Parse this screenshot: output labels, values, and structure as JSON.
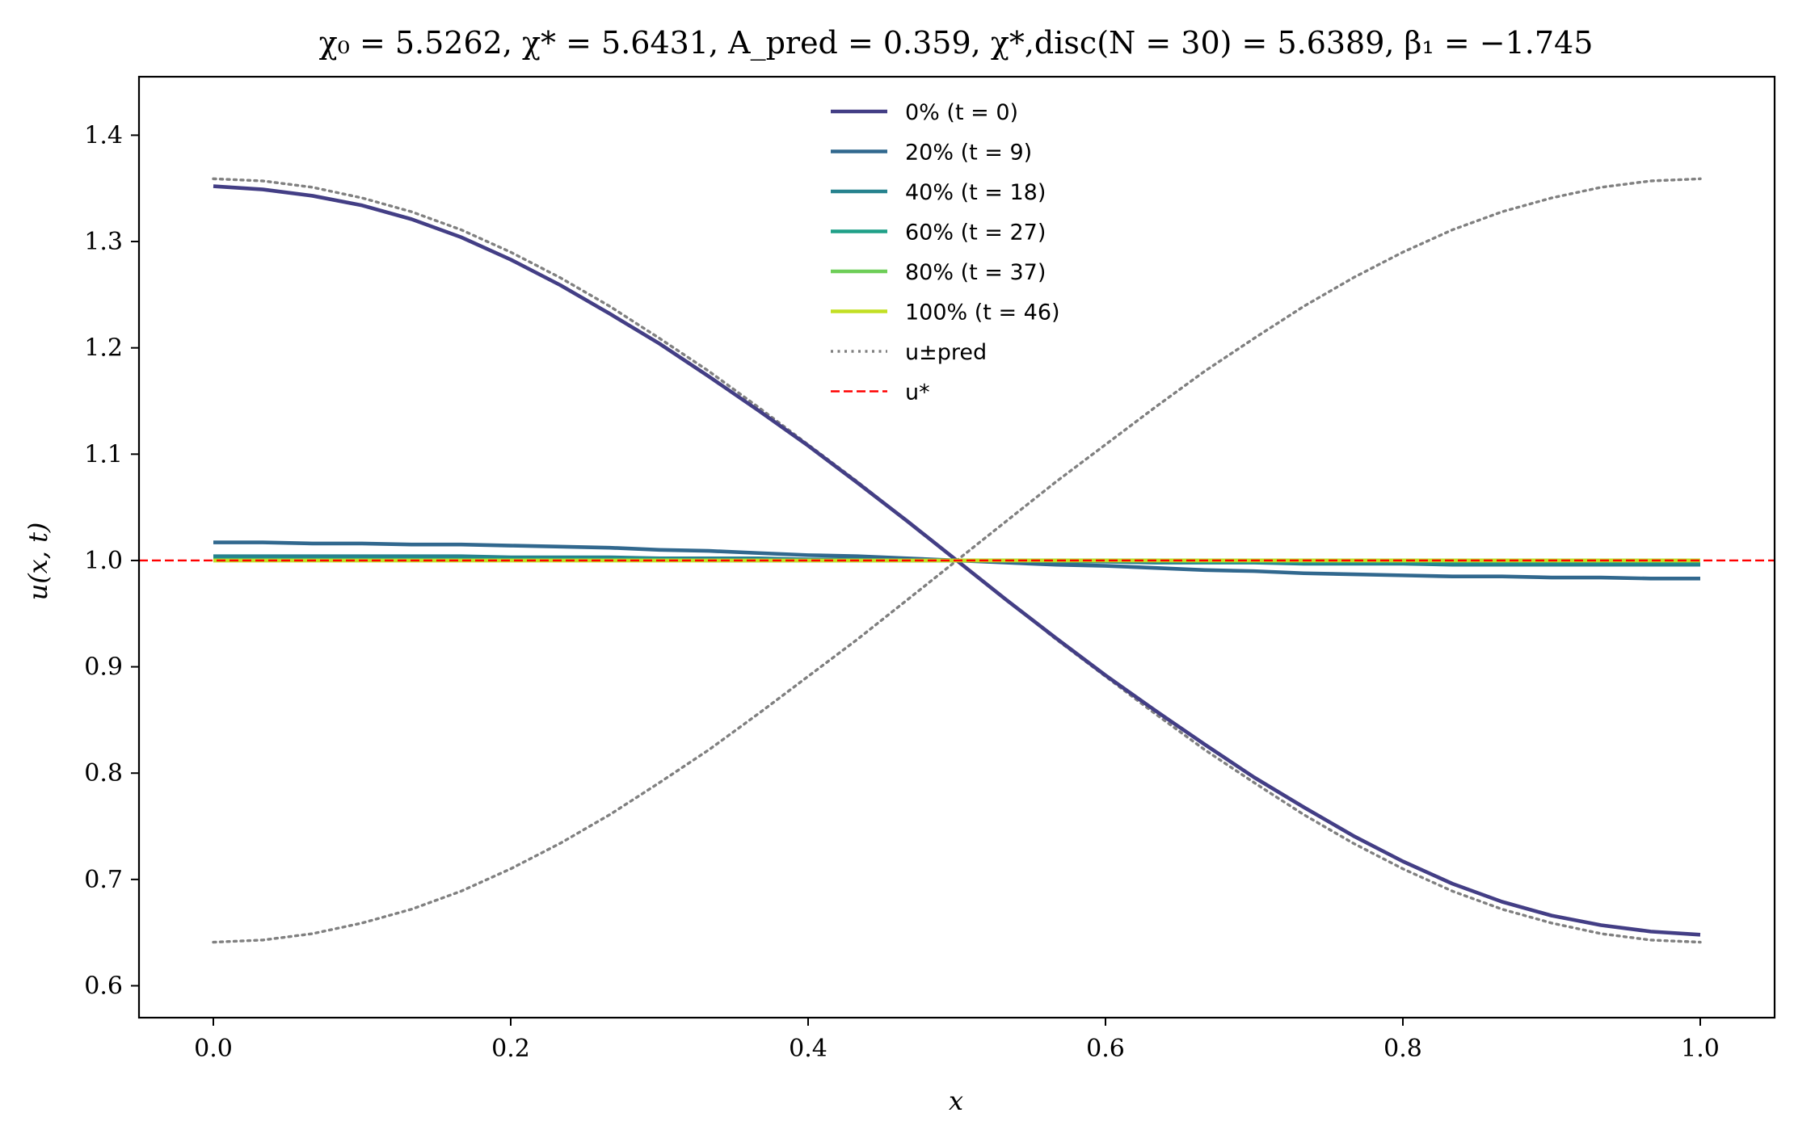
{
  "chart_data": {
    "type": "line",
    "title": "χ₀ = 5.5262,  χ* = 5.6431,  A_pred = 0.359,  χ*,disc(N = 30) = 5.6389,  β₁ = −1.745",
    "xlabel": "x",
    "ylabel": "u(x, t)",
    "xlim": [
      -0.05,
      1.05
    ],
    "ylim": [
      0.57,
      1.455
    ],
    "xticks": [
      0.0,
      0.2,
      0.4,
      0.6,
      0.8,
      1.0
    ],
    "xtick_labels": [
      "0.0",
      "0.2",
      "0.4",
      "0.6",
      "0.8",
      "1.0"
    ],
    "yticks": [
      0.6,
      0.7,
      0.8,
      0.9,
      1.0,
      1.1,
      1.2,
      1.3,
      1.4
    ],
    "ytick_labels": [
      "0.6",
      "0.7",
      "0.8",
      "0.9",
      "1.0",
      "1.1",
      "1.2",
      "1.3",
      "1.4"
    ],
    "grid": false,
    "legend_position": "top-center",
    "x": [
      0.0,
      0.0333,
      0.0667,
      0.1,
      0.1333,
      0.1667,
      0.2,
      0.2333,
      0.2667,
      0.3,
      0.3333,
      0.3667,
      0.4,
      0.4333,
      0.4667,
      0.5,
      0.5333,
      0.5667,
      0.6,
      0.6333,
      0.6667,
      0.7,
      0.7333,
      0.7667,
      0.8,
      0.8333,
      0.8667,
      0.9,
      0.9333,
      0.9667,
      1.0
    ],
    "series": [
      {
        "name": "0% (t = 0)",
        "color": "#433e85",
        "style": "solid",
        "values": [
          1.352,
          1.349,
          1.343,
          1.334,
          1.321,
          1.304,
          1.283,
          1.259,
          1.232,
          1.204,
          1.173,
          1.141,
          1.108,
          1.073,
          1.037,
          1.0,
          0.963,
          0.927,
          0.892,
          0.859,
          0.827,
          0.796,
          0.768,
          0.741,
          0.717,
          0.696,
          0.679,
          0.666,
          0.657,
          0.651,
          0.648
        ]
      },
      {
        "name": "20% (t = 9)",
        "color": "#31688e",
        "style": "solid",
        "values": [
          1.017,
          1.017,
          1.016,
          1.016,
          1.015,
          1.015,
          1.014,
          1.013,
          1.012,
          1.01,
          1.009,
          1.007,
          1.005,
          1.004,
          1.002,
          1.0,
          0.998,
          0.996,
          0.995,
          0.993,
          0.991,
          0.99,
          0.988,
          0.987,
          0.986,
          0.985,
          0.985,
          0.984,
          0.984,
          0.983,
          0.983
        ]
      },
      {
        "name": "40% (t = 18)",
        "color": "#26828e",
        "style": "solid",
        "values": [
          1.004,
          1.004,
          1.004,
          1.004,
          1.004,
          1.004,
          1.003,
          1.003,
          1.003,
          1.002,
          1.002,
          1.002,
          1.001,
          1.001,
          1.0,
          1.0,
          1.0,
          0.999,
          0.999,
          0.998,
          0.998,
          0.998,
          0.997,
          0.997,
          0.997,
          0.996,
          0.996,
          0.996,
          0.996,
          0.996,
          0.996
        ]
      },
      {
        "name": "60% (t = 27)",
        "color": "#1fa088",
        "style": "solid",
        "values": [
          1.001,
          1.001,
          1.001,
          1.001,
          1.001,
          1.001,
          1.001,
          1.001,
          1.001,
          1.001,
          1.0,
          1.0,
          1.0,
          1.0,
          1.0,
          1.0,
          1.0,
          1.0,
          1.0,
          1.0,
          0.999,
          0.999,
          0.999,
          0.999,
          0.999,
          0.999,
          0.999,
          0.999,
          0.999,
          0.999,
          0.999
        ]
      },
      {
        "name": "80% (t = 37)",
        "color": "#6ece58",
        "style": "solid",
        "values": [
          1.0,
          1.0,
          1.0,
          1.0,
          1.0,
          1.0,
          1.0,
          1.0,
          1.0,
          1.0,
          1.0,
          1.0,
          1.0,
          1.0,
          1.0,
          1.0,
          1.0,
          1.0,
          1.0,
          1.0,
          1.0,
          1.0,
          1.0,
          1.0,
          1.0,
          1.0,
          1.0,
          1.0,
          1.0,
          1.0,
          1.0
        ]
      },
      {
        "name": "100% (t = 46)",
        "color": "#c2df23",
        "style": "solid",
        "values": [
          1.0,
          1.0,
          1.0,
          1.0,
          1.0,
          1.0,
          1.0,
          1.0,
          1.0,
          1.0,
          1.0,
          1.0,
          1.0,
          1.0,
          1.0,
          1.0,
          1.0,
          1.0,
          1.0,
          1.0,
          1.0,
          1.0,
          1.0,
          1.0,
          1.0,
          1.0,
          1.0,
          1.0,
          1.0,
          1.0,
          1.0
        ]
      },
      {
        "name": "u±pred",
        "color": "#808080",
        "style": "dotted",
        "values": [
          1.359,
          1.357,
          1.351,
          1.341,
          1.328,
          1.311,
          1.29,
          1.266,
          1.239,
          1.209,
          1.178,
          1.144,
          1.109,
          1.074,
          1.037,
          1.0,
          0.963,
          0.926,
          0.891,
          0.856,
          0.822,
          0.791,
          0.761,
          0.734,
          0.71,
          0.689,
          0.672,
          0.659,
          0.649,
          0.643,
          0.641
        ]
      },
      {
        "name": "",
        "color": "#808080",
        "style": "dotted",
        "legend": false,
        "values": [
          0.641,
          0.643,
          0.649,
          0.659,
          0.672,
          0.689,
          0.71,
          0.734,
          0.761,
          0.791,
          0.822,
          0.856,
          0.891,
          0.926,
          0.963,
          1.0,
          1.037,
          1.074,
          1.109,
          1.144,
          1.178,
          1.209,
          1.239,
          1.266,
          1.29,
          1.311,
          1.328,
          1.341,
          1.351,
          1.357,
          1.359
        ]
      }
    ],
    "hlines": [
      {
        "name": "u*",
        "y": 1.0,
        "color": "#ff0000",
        "style": "dashed"
      }
    ]
  }
}
